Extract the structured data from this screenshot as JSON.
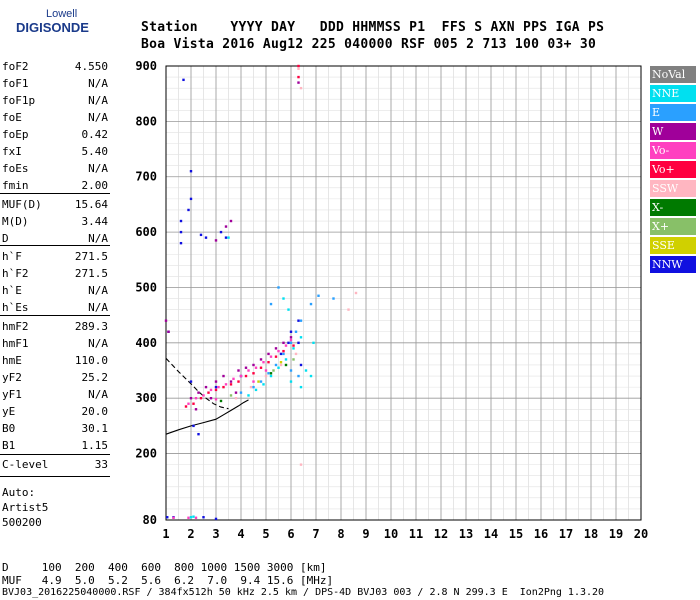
{
  "logo": {
    "line1": "Lowell",
    "line2": "DIGISONDE"
  },
  "header": {
    "row1": "Station    YYYY DAY   DDD HHMMSS P1  FFS S AXN PPS IGA PS",
    "row2": "Boa Vista 2016 Aug12 225 040000 RSF 005 2 713 100 03+ 30"
  },
  "params": [
    {
      "name": "foF2",
      "value": "4.550"
    },
    {
      "name": "foF1",
      "value": "N/A"
    },
    {
      "name": "foF1p",
      "value": "N/A"
    },
    {
      "name": "foE",
      "value": "N/A"
    },
    {
      "name": "foEp",
      "value": "0.42"
    },
    {
      "name": "fxI",
      "value": "5.40"
    },
    {
      "name": "foEs",
      "value": "N/A"
    },
    {
      "name": "fmin",
      "value": "2.00"
    },
    {
      "name": "MUF(D)",
      "value": "15.64"
    },
    {
      "name": "M(D)",
      "value": "3.44"
    },
    {
      "name": "D",
      "value": "N/A"
    },
    {
      "name": "h`F",
      "value": "271.5"
    },
    {
      "name": "h`F2",
      "value": "271.5"
    },
    {
      "name": "h`E",
      "value": "N/A"
    },
    {
      "name": "h`Es",
      "value": "N/A"
    },
    {
      "name": "hmF2",
      "value": "289.3"
    },
    {
      "name": "hmF1",
      "value": "N/A"
    },
    {
      "name": "hmE",
      "value": "110.0"
    },
    {
      "name": "yF2",
      "value": "25.2"
    },
    {
      "name": "yF1",
      "value": "N/A"
    },
    {
      "name": "yE",
      "value": "20.0"
    },
    {
      "name": "B0",
      "value": "30.1"
    },
    {
      "name": "B1",
      "value": "1.15"
    },
    {
      "name": "C-level",
      "value": "33"
    }
  ],
  "auto": {
    "line1": "Auto:",
    "line2": "Artist5",
    "line3": "500200"
  },
  "legend": [
    {
      "label": "NoVal",
      "color": "#808080",
      "text_color": "#ffffff"
    },
    {
      "label": "NNE",
      "color": "#00e0f0",
      "text_color": "#ffffff"
    },
    {
      "label": "E",
      "color": "#2aa0ff",
      "text_color": "#ffffff"
    },
    {
      "label": "W",
      "color": "#a0009a",
      "text_color": "#ffffff"
    },
    {
      "label": "Vo-",
      "color": "#ff40c0",
      "text_color": "#ffffff"
    },
    {
      "label": "Vo+",
      "color": "#ff0040",
      "text_color": "#ffffff"
    },
    {
      "label": "SSW",
      "color": "#ffb6c1",
      "text_color": "#ffffff"
    },
    {
      "label": "X-",
      "color": "#007a00",
      "text_color": "#ffffff"
    },
    {
      "label": "X+",
      "color": "#88c068",
      "text_color": "#ffffff"
    },
    {
      "label": "SSE",
      "color": "#d0d000",
      "text_color": "#ffffff"
    },
    {
      "label": "NNW",
      "color": "#1010e0",
      "text_color": "#ffffff"
    }
  ],
  "footer": {
    "line1": "D     100  200  400  600  800 1000 1500 3000 [km]",
    "line2": "MUF   4.9  5.0  5.2  5.6  6.2  7.0  9.4 15.6 [MHz]",
    "line3": "BVJ03_2016225040000.RSF / 384fx512h 50 kHz 2.5 km / DPS-4D BVJ03 003 / 2.8 N 299.3 E  Ion2Png 1.3.20"
  },
  "chart_data": {
    "type": "scatter",
    "title": "",
    "xlabel": "",
    "ylabel": "",
    "xlim": [
      1,
      20
    ],
    "ylim": [
      80,
      900
    ],
    "x_ticks": [
      1,
      2,
      3,
      4,
      5,
      6,
      7,
      8,
      9,
      10,
      11,
      12,
      13,
      14,
      15,
      16,
      17,
      18,
      19,
      20
    ],
    "y_ticks": [
      80,
      200,
      300,
      400,
      500,
      600,
      700,
      800,
      900
    ],
    "grid": true,
    "grid_minor_x": 0.5,
    "grid_minor_y": 20,
    "series": [
      {
        "name": "NNW",
        "color": "#1010e0",
        "points": [
          [
            1.7,
            875
          ],
          [
            2.0,
            710
          ],
          [
            2.0,
            660
          ],
          [
            1.9,
            640
          ],
          [
            1.6,
            620
          ],
          [
            1.6,
            600
          ],
          [
            1.6,
            580
          ],
          [
            2.4,
            595
          ],
          [
            2.6,
            590
          ],
          [
            3.2,
            600
          ],
          [
            3.4,
            590
          ],
          [
            2.1,
            250
          ],
          [
            2.3,
            235
          ],
          [
            2.0,
            330
          ],
          [
            3.0,
            320
          ],
          [
            4.0,
            340
          ],
          [
            5.6,
            380
          ],
          [
            5.9,
            400
          ],
          [
            6.0,
            420
          ],
          [
            6.3,
            440
          ],
          [
            6.3,
            400
          ],
          [
            6.4,
            360
          ],
          [
            1.1,
            420
          ],
          [
            1.05,
            85
          ],
          [
            1.3,
            85
          ],
          [
            2.5,
            85
          ],
          [
            3.0,
            82
          ]
        ]
      },
      {
        "name": "W",
        "color": "#a0009a",
        "points": [
          [
            1.0,
            440
          ],
          [
            1.1,
            420
          ],
          [
            2.0,
            300
          ],
          [
            2.3,
            310
          ],
          [
            2.6,
            320
          ],
          [
            3.0,
            330
          ],
          [
            3.3,
            340
          ],
          [
            3.6,
            330
          ],
          [
            3.9,
            350
          ],
          [
            4.2,
            355
          ],
          [
            4.5,
            360
          ],
          [
            4.8,
            370
          ],
          [
            5.1,
            380
          ],
          [
            5.4,
            390
          ],
          [
            5.7,
            400
          ],
          [
            6.0,
            410
          ],
          [
            3.4,
            610
          ],
          [
            3.6,
            620
          ],
          [
            3.0,
            585
          ],
          [
            6.3,
            870
          ],
          [
            2.2,
            280
          ],
          [
            2.8,
            300
          ],
          [
            3.8,
            310
          ]
        ]
      },
      {
        "name": "Vo-",
        "color": "#ff40c0",
        "points": [
          [
            1.9,
            290
          ],
          [
            2.2,
            300
          ],
          [
            2.5,
            305
          ],
          [
            2.8,
            315
          ],
          [
            3.1,
            320
          ],
          [
            3.4,
            325
          ],
          [
            3.7,
            335
          ],
          [
            4.0,
            340
          ],
          [
            4.3,
            350
          ],
          [
            4.6,
            355
          ],
          [
            4.9,
            365
          ],
          [
            5.2,
            375
          ],
          [
            5.5,
            385
          ],
          [
            5.8,
            395
          ],
          [
            6.0,
            405
          ],
          [
            3.0,
            298
          ],
          [
            4.5,
            330
          ],
          [
            5.0,
            350
          ],
          [
            1.3,
            84
          ],
          [
            1.9,
            84
          ],
          [
            2.2,
            84
          ]
        ]
      },
      {
        "name": "Vo+",
        "color": "#ff0040",
        "points": [
          [
            1.8,
            285
          ],
          [
            2.1,
            290
          ],
          [
            2.4,
            300
          ],
          [
            2.7,
            310
          ],
          [
            3.0,
            315
          ],
          [
            3.3,
            320
          ],
          [
            3.6,
            325
          ],
          [
            3.9,
            330
          ],
          [
            4.2,
            340
          ],
          [
            4.5,
            345
          ],
          [
            4.8,
            355
          ],
          [
            5.1,
            365
          ],
          [
            5.4,
            375
          ],
          [
            5.7,
            385
          ],
          [
            6.1,
            395
          ],
          [
            6.3,
            880
          ],
          [
            6.3,
            900
          ]
        ]
      },
      {
        "name": "E",
        "color": "#2aa0ff",
        "points": [
          [
            4.0,
            310
          ],
          [
            4.5,
            320
          ],
          [
            4.8,
            330
          ],
          [
            5.1,
            345
          ],
          [
            5.4,
            360
          ],
          [
            5.7,
            380
          ],
          [
            6.0,
            400
          ],
          [
            6.2,
            420
          ],
          [
            6.4,
            440
          ],
          [
            6.8,
            470
          ],
          [
            7.1,
            485
          ],
          [
            7.7,
            480
          ],
          [
            5.2,
            470
          ],
          [
            5.5,
            500
          ],
          [
            6.0,
            350
          ],
          [
            6.3,
            340
          ]
        ]
      },
      {
        "name": "NNE",
        "color": "#00e0f0",
        "points": [
          [
            4.3,
            305
          ],
          [
            4.6,
            315
          ],
          [
            4.9,
            325
          ],
          [
            5.2,
            340
          ],
          [
            5.5,
            355
          ],
          [
            5.8,
            370
          ],
          [
            6.1,
            390
          ],
          [
            6.4,
            410
          ],
          [
            6.6,
            350
          ],
          [
            6.8,
            340
          ],
          [
            6.4,
            320
          ],
          [
            6.0,
            330
          ],
          [
            5.7,
            480
          ],
          [
            5.9,
            460
          ],
          [
            2.0,
            85
          ],
          [
            2.1,
            86
          ],
          [
            3.5,
            590
          ],
          [
            6.9,
            400
          ]
        ]
      },
      {
        "name": "SSW",
        "color": "#ffb6c1",
        "points": [
          [
            3.8,
            300
          ],
          [
            4.4,
            320
          ],
          [
            5.0,
            340
          ],
          [
            5.6,
            360
          ],
          [
            6.2,
            380
          ],
          [
            6.3,
            895
          ],
          [
            6.4,
            860
          ],
          [
            8.6,
            490
          ],
          [
            8.3,
            460
          ],
          [
            6.4,
            180
          ]
        ]
      },
      {
        "name": "X-",
        "color": "#007a00",
        "points": [
          [
            3.2,
            295
          ],
          [
            5.2,
            345
          ],
          [
            5.8,
            360
          ]
        ]
      },
      {
        "name": "X+",
        "color": "#88c068",
        "points": [
          [
            3.6,
            305
          ],
          [
            5.3,
            350
          ],
          [
            6.1,
            370
          ]
        ]
      },
      {
        "name": "SSE",
        "color": "#d0d000",
        "points": [
          [
            4.7,
            330
          ],
          [
            5.6,
            365
          ]
        ]
      }
    ],
    "fit_curves": [
      {
        "color": "#000000",
        "dash": false,
        "points": [
          [
            1,
            235
          ],
          [
            1.5,
            243
          ],
          [
            2,
            250
          ],
          [
            2.5,
            256
          ],
          [
            3,
            262
          ],
          [
            3.3,
            270
          ],
          [
            3.6,
            278
          ],
          [
            3.9,
            286
          ],
          [
            4.1,
            292
          ],
          [
            4.3,
            297
          ]
        ]
      },
      {
        "color": "#000000",
        "dash": true,
        "points": [
          [
            1,
            372
          ],
          [
            1.5,
            348
          ],
          [
            2,
            326
          ],
          [
            2.3,
            312
          ],
          [
            2.6,
            300
          ],
          [
            2.9,
            290
          ],
          [
            3.2,
            284
          ],
          [
            3.5,
            281
          ]
        ]
      }
    ]
  }
}
